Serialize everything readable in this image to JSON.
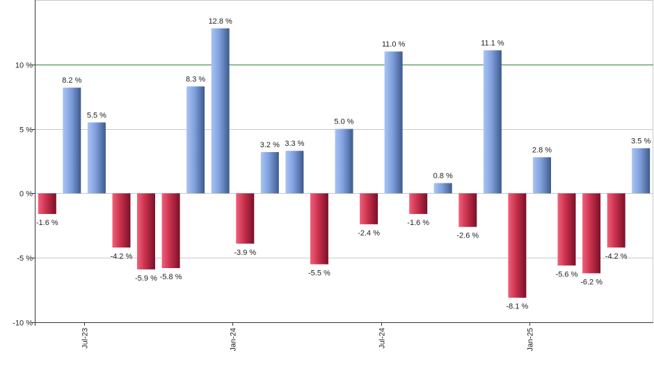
{
  "chart_data": {
    "type": "bar",
    "title": "",
    "xlabel": "",
    "ylabel": "",
    "ylim": [
      -10,
      15
    ],
    "y_ticks": [
      10,
      5,
      0,
      -5,
      -10
    ],
    "y_tick_labels": [
      "10 %",
      "5 %",
      "0 %",
      "-5 %",
      "-10 %"
    ],
    "x_tick_labels": [
      {
        "label": "Jul-23",
        "after_bar": 1
      },
      {
        "label": "Jan-24",
        "after_bar": 7
      },
      {
        "label": "Jul-24",
        "after_bar": 13
      },
      {
        "label": "Jan-25",
        "after_bar": 19
      }
    ],
    "reference_line": 10,
    "values": [
      -1.6,
      8.2,
      5.5,
      -4.2,
      -5.9,
      -5.8,
      8.3,
      12.8,
      -3.9,
      3.2,
      3.3,
      -5.5,
      5.0,
      -2.4,
      11.0,
      -1.6,
      0.8,
      -2.6,
      11.1,
      -8.1,
      2.8,
      -5.6,
      -6.2,
      -4.2,
      3.5
    ],
    "value_labels": [
      "-1.6 %",
      "8.2 %",
      "5.5 %",
      "-4.2 %",
      "-5.9 %",
      "-5.8 %",
      "8.3 %",
      "12.8 %",
      "-3.9 %",
      "3.2 %",
      "3.3 %",
      "-5.5 %",
      "5.0 %",
      "-2.4 %",
      "11.0 %",
      "-1.6 %",
      "0.8 %",
      "-2.6 %",
      "11.1 %",
      "-8.1 %",
      "2.8 %",
      "-5.6 %",
      "-6.2 %",
      "-4.2 %",
      "3.5 %"
    ],
    "grid": true,
    "colors": {
      "positive_light": "#a9c4f5",
      "positive_dark": "#3d5a8c",
      "negative_light": "#f0607a",
      "negative_dark": "#7a1028",
      "reference_line": "#2e7d32",
      "grid": "#c8c8c8",
      "axis": "#333333"
    }
  }
}
